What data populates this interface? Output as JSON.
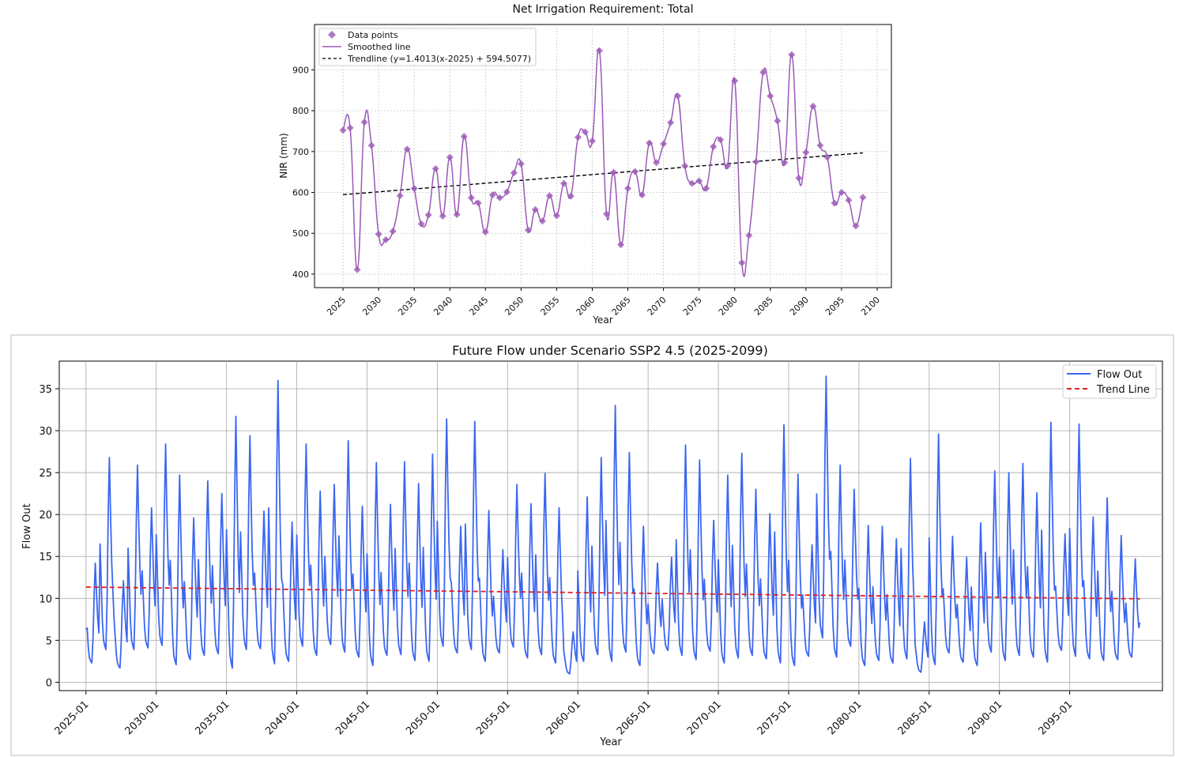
{
  "chart_data": [
    {
      "type": "line",
      "title": "Net Irrigation Requirement: Total",
      "xlabel": "Year",
      "ylabel": "NIR (mm)",
      "xlim": [
        2021,
        2102
      ],
      "ylim": [
        367,
        1011
      ],
      "xticks": [
        2025,
        2030,
        2035,
        2040,
        2045,
        2050,
        2055,
        2060,
        2065,
        2070,
        2075,
        2080,
        2085,
        2090,
        2095,
        2100
      ],
      "yticks": [
        400,
        500,
        600,
        700,
        800,
        900
      ],
      "grid": true,
      "legend_position": "top-left",
      "colors": {
        "points": "#9b59b6",
        "line": "#9b59b6",
        "trend": "#000000"
      },
      "legend": [
        "Data points",
        "Smoothed line",
        "Trendline (y=1.4013(x-2025) + 594.5077)"
      ],
      "trend": {
        "slope": 1.4013,
        "intercept": 594.5077,
        "x0": 2025,
        "x_start": 2025,
        "x_end": 2098
      },
      "x": [
        2025,
        2026,
        2027,
        2028,
        2029,
        2030,
        2031,
        2032,
        2033,
        2034,
        2035,
        2036,
        2037,
        2038,
        2039,
        2040,
        2041,
        2042,
        2043,
        2044,
        2045,
        2046,
        2047,
        2048,
        2049,
        2050,
        2051,
        2052,
        2053,
        2054,
        2055,
        2056,
        2057,
        2058,
        2059,
        2060,
        2061,
        2062,
        2063,
        2064,
        2065,
        2066,
        2067,
        2068,
        2069,
        2070,
        2071,
        2072,
        2073,
        2074,
        2075,
        2076,
        2077,
        2078,
        2079,
        2080,
        2081,
        2082,
        2083,
        2084,
        2085,
        2086,
        2087,
        2088,
        2089,
        2090,
        2091,
        2092,
        2093,
        2094,
        2095,
        2096,
        2097,
        2098
      ],
      "y": [
        752,
        758,
        411,
        772,
        715,
        498,
        484,
        505,
        592,
        706,
        610,
        523,
        545,
        658,
        542,
        686,
        546,
        737,
        587,
        574,
        503,
        594,
        587,
        601,
        648,
        670,
        508,
        558,
        530,
        592,
        543,
        622,
        591,
        735,
        748,
        726,
        947,
        547,
        649,
        472,
        610,
        651,
        594,
        721,
        673,
        719,
        771,
        836,
        665,
        622,
        628,
        610,
        712,
        729,
        665,
        873,
        428,
        495,
        675,
        894,
        836,
        775,
        673,
        937,
        635,
        698,
        811,
        715,
        686,
        574,
        600,
        581,
        518,
        588
      ]
    },
    {
      "type": "line",
      "title": "Future Flow under Scenario SSP2 4.5 (2025-2099)",
      "xlabel": "Year",
      "ylabel": "Flow Out",
      "xlim": [
        2023.1,
        2101.6
      ],
      "ylim": [
        -1.0,
        38.3
      ],
      "xticks": [
        "2025-01",
        "2030-01",
        "2035-01",
        "2040-01",
        "2045-01",
        "2050-01",
        "2055-01",
        "2060-01",
        "2065-01",
        "2070-01",
        "2075-01",
        "2080-01",
        "2085-01",
        "2090-01",
        "2095-01"
      ],
      "yticks": [
        0,
        5,
        10,
        15,
        20,
        25,
        30,
        35
      ],
      "grid": true,
      "legend_position": "top-right",
      "colors": {
        "flow": "#3b66f0",
        "trend": "#e02020"
      },
      "legend": [
        "Flow Out",
        "Trend Line"
      ],
      "trend": {
        "start": 11.35,
        "end": 9.95
      },
      "years": [
        2025,
        2026,
        2027,
        2028,
        2029,
        2030,
        2031,
        2032,
        2033,
        2034,
        2035,
        2036,
        2037,
        2038,
        2039,
        2040,
        2041,
        2042,
        2043,
        2044,
        2045,
        2046,
        2047,
        2048,
        2049,
        2050,
        2051,
        2052,
        2053,
        2054,
        2055,
        2056,
        2057,
        2058,
        2059,
        2060,
        2061,
        2062,
        2063,
        2064,
        2065,
        2066,
        2067,
        2068,
        2069,
        2070,
        2071,
        2072,
        2073,
        2074,
        2075,
        2076,
        2077,
        2078,
        2079,
        2080,
        2081,
        2082,
        2083,
        2084,
        2085,
        2086,
        2087,
        2088,
        2089,
        2090,
        2091,
        2092,
        2093,
        2094,
        2095,
        2096,
        2097,
        2098,
        2099
      ],
      "annual_peaks": [
        14.2,
        26.8,
        12.1,
        25.9,
        20.8,
        28.4,
        24.7,
        19.6,
        24.0,
        22.5,
        31.7,
        29.4,
        20.4,
        36.0,
        19.1,
        28.4,
        22.8,
        23.6,
        28.8,
        21.0,
        26.2,
        21.2,
        26.3,
        23.7,
        27.2,
        31.4,
        18.6,
        31.1,
        20.5,
        15.8,
        23.6,
        21.3,
        24.9,
        20.8,
        6.0,
        22.1,
        26.8,
        33.0,
        27.4,
        18.6,
        14.2,
        14.9,
        28.3,
        26.5,
        19.3,
        24.7,
        27.3,
        23.0,
        20.1,
        30.7,
        24.8,
        16.4,
        36.5,
        25.9,
        23.0,
        18.7,
        18.6,
        17.1,
        26.7,
        7.2,
        29.6,
        17.4,
        14.9,
        19.0,
        25.2,
        25.0,
        26.1,
        22.6,
        31.0,
        17.7,
        30.8,
        19.7,
        22.0,
        17.5,
        14.7
      ],
      "annual_lows": [
        2.3,
        3.9,
        1.7,
        3.9,
        4.1,
        4.4,
        2.1,
        2.7,
        3.2,
        3.4,
        1.7,
        3.9,
        4.0,
        2.2,
        2.5,
        4.3,
        3.2,
        4.5,
        3.6,
        3.0,
        2.0,
        3.2,
        3.3,
        2.6,
        2.5,
        4.3,
        3.5,
        3.9,
        2.5,
        3.5,
        4.2,
        2.9,
        3.3,
        2.3,
        1.0,
        2.5,
        3.3,
        2.5,
        3.6,
        2.0,
        3.4,
        3.8,
        3.2,
        2.7,
        3.7,
        2.3,
        2.9,
        3.2,
        2.8,
        2.3,
        2.0,
        3.1,
        5.3,
        3.0,
        4.3,
        2.0,
        2.6,
        2.3,
        2.8,
        1.2,
        2.1,
        3.5,
        2.4,
        2.0,
        3.6,
        2.6,
        3.2,
        3.0,
        2.4,
        3.8,
        3.1,
        2.8,
        2.6,
        2.7,
        3.0
      ]
    }
  ]
}
